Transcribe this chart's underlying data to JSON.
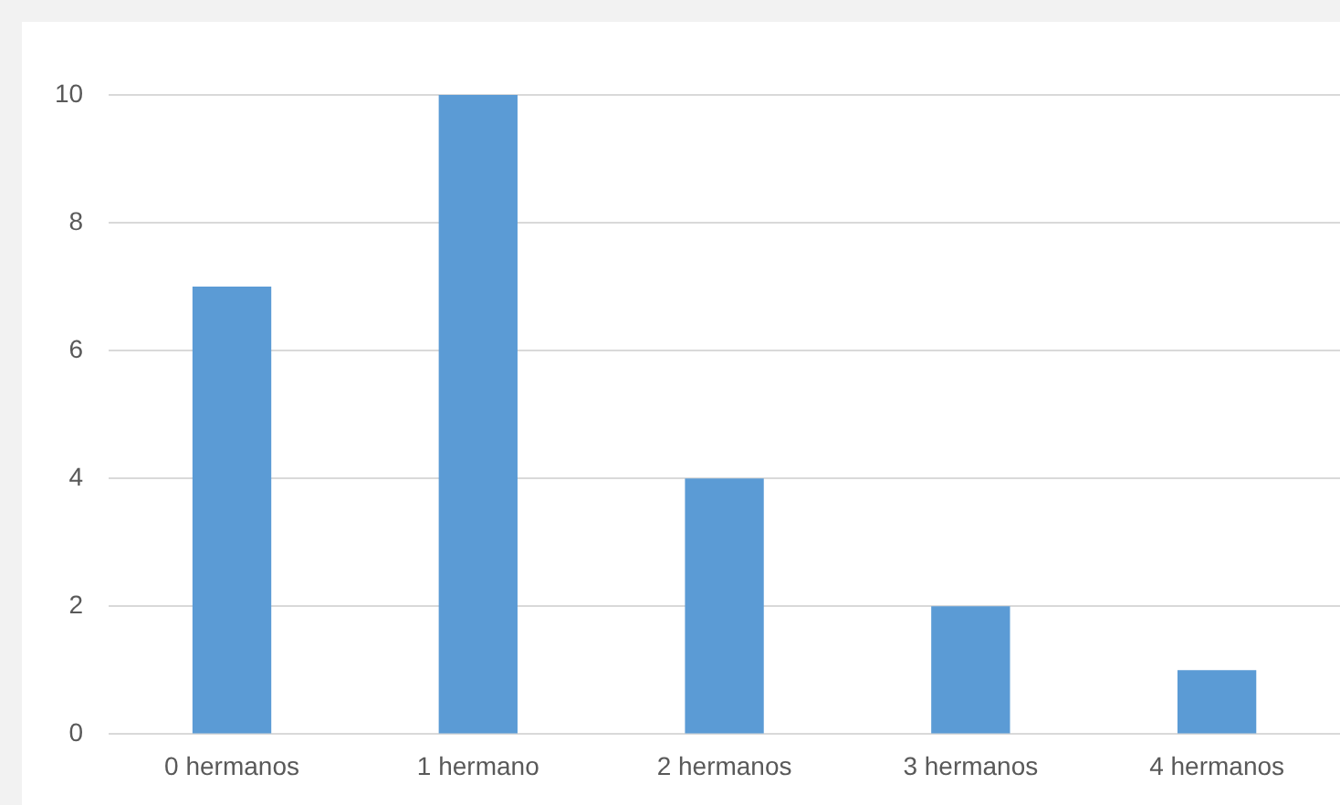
{
  "chart_data": {
    "type": "bar",
    "categories": [
      "0 hermanos",
      "1 hermano",
      "2 hermanos",
      "3 hermanos",
      "4 hermanos"
    ],
    "values": [
      7,
      10,
      4,
      2,
      1
    ],
    "color": "#5b9bd5",
    "ylim": [
      0,
      10
    ],
    "yticks": [
      0,
      2,
      4,
      6,
      8,
      10
    ],
    "grid": "y",
    "legend": false
  }
}
